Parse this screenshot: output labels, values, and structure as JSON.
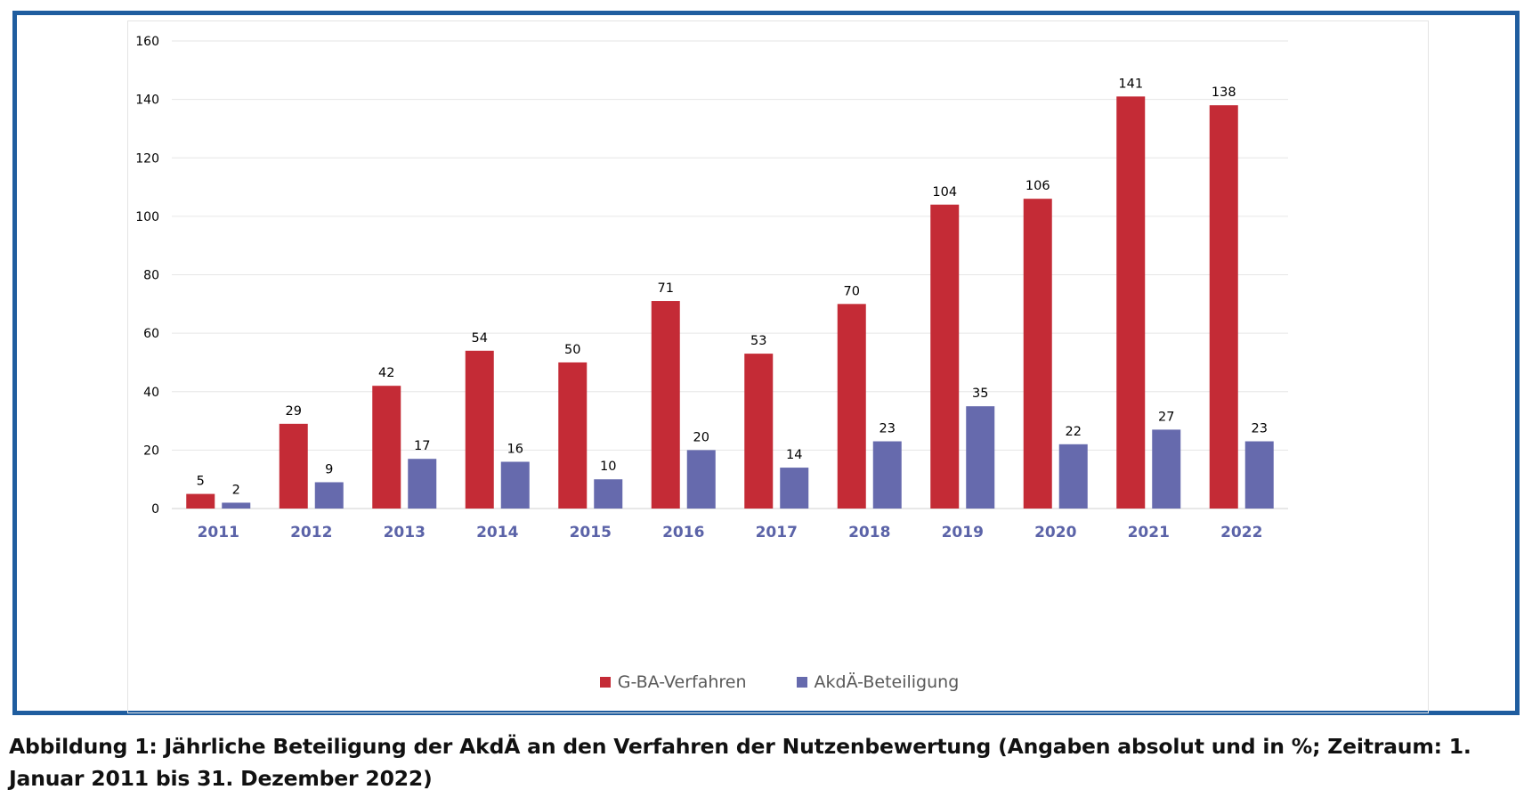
{
  "chart_data": {
    "type": "bar",
    "categories": [
      "2011",
      "2012",
      "2013",
      "2014",
      "2015",
      "2016",
      "2017",
      "2018",
      "2019",
      "2020",
      "2021",
      "2022"
    ],
    "series": [
      {
        "name": "G-BA-Verfahren",
        "color": "#c42b36",
        "values": [
          5,
          29,
          42,
          54,
          50,
          71,
          53,
          70,
          104,
          106,
          141,
          138
        ]
      },
      {
        "name": "AkdÄ-Beteiligung",
        "color": "#666aad",
        "values": [
          2,
          9,
          17,
          16,
          10,
          20,
          14,
          23,
          35,
          22,
          27,
          23
        ]
      }
    ],
    "yticks": [
      "0",
      "20",
      "40",
      "60",
      "80",
      "100",
      "120",
      "140",
      "160"
    ],
    "ylim": [
      0,
      160
    ],
    "grid": true,
    "legend": "bottom-center",
    "category_label_color": "#5b63a8"
  },
  "caption": "Abbildung 1: Jährliche Beteiligung der AkdÄ an den Verfahren der Nutzenbewertung (Angaben absolut und in %; Zeitraum: 1. Januar 2011 bis 31. Dezember 2022)"
}
